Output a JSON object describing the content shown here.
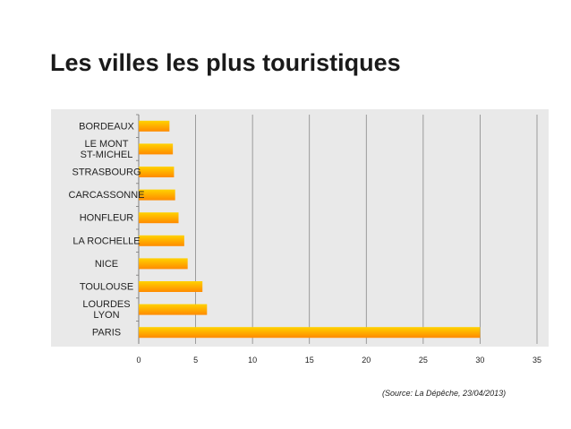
{
  "title": "Les villes les plus touristiques",
  "source": "(Source: La Dépêche, 23/04/2013)",
  "chart_data": {
    "type": "bar",
    "orientation": "horizontal",
    "categories": [
      "BORDEAUX",
      "LE MONT ST-MICHEL",
      "STRASBOURG",
      "CARCASSONNE",
      "HONFLEUR",
      "LA ROCHELLE",
      "NICE",
      "TOULOUSE",
      "LOURDES LYON",
      "PARIS"
    ],
    "category_lines": [
      [
        "BORDEAUX"
      ],
      [
        "LE MONT",
        "ST-MICHEL"
      ],
      [
        "STRASBOURG"
      ],
      [
        "CARCASSONNE"
      ],
      [
        "HONFLEUR"
      ],
      [
        "LA ROCHELLE"
      ],
      [
        "NICE"
      ],
      [
        "TOULOUSE"
      ],
      [
        "LOURDES",
        "LYON"
      ],
      [
        "PARIS"
      ]
    ],
    "values": [
      2.7,
      3.0,
      3.1,
      3.2,
      3.5,
      4.0,
      4.3,
      5.6,
      6.0,
      30.0
    ],
    "xlim": [
      0,
      35
    ],
    "xticks": [
      0,
      5,
      10,
      15,
      20,
      25,
      30,
      35
    ],
    "grid": "vertical",
    "legend": "none",
    "colors": {
      "bar_top": "#ffd200",
      "bar_bottom": "#ff8a00",
      "plot_bg": "#e9e9e9",
      "grid": "#888888"
    }
  }
}
